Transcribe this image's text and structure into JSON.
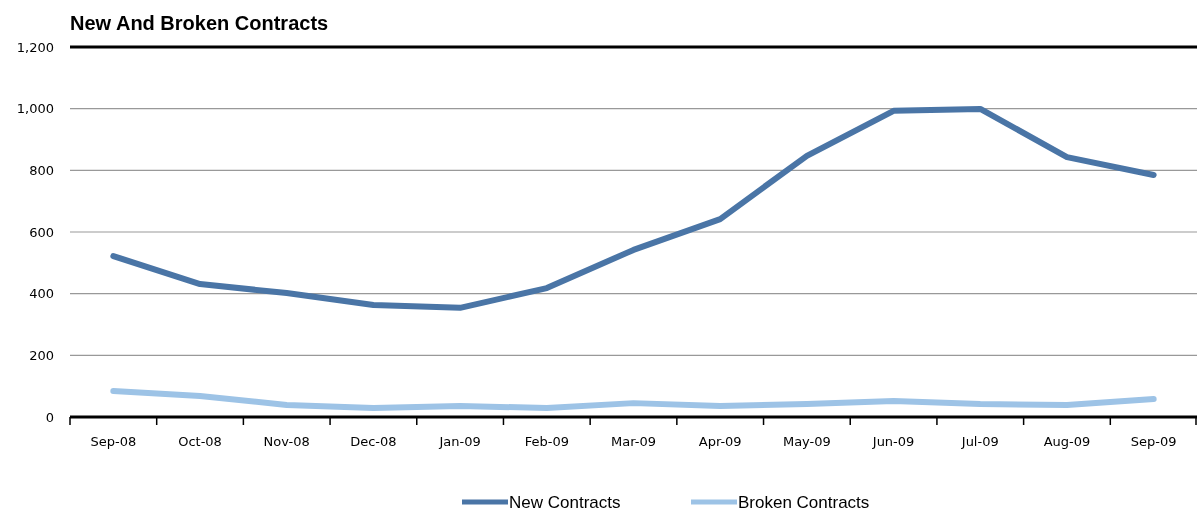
{
  "chart_data": {
    "type": "line",
    "title": "New And Broken Contracts",
    "categories": [
      "Sep-08",
      "Oct-08",
      "Nov-08",
      "Dec-08",
      "Jan-09",
      "Feb-09",
      "Mar-09",
      "Apr-09",
      "May-09",
      "Jun-09",
      "Jul-09",
      "Aug-09",
      "Sep-09"
    ],
    "series": [
      {
        "name": "New Contracts",
        "color": "#4a75a6",
        "values": [
          522,
          431,
          402,
          363,
          354,
          418,
          542,
          642,
          847,
          993,
          999,
          843,
          785
        ]
      },
      {
        "name": "Broken Contracts",
        "color": "#9dc3e6",
        "values": [
          84,
          68,
          39,
          29,
          36,
          29,
          45,
          36,
          42,
          52,
          42,
          39,
          58
        ]
      }
    ],
    "ylim": [
      0,
      1200
    ],
    "yticks": [
      0,
      200,
      400,
      600,
      800,
      {
        "value": 1000,
        "label": "1,000"
      },
      {
        "value": 1200,
        "label": "1,200"
      }
    ],
    "grid": "y",
    "legend": "bottom",
    "marker": "none",
    "line_style": "solid"
  }
}
